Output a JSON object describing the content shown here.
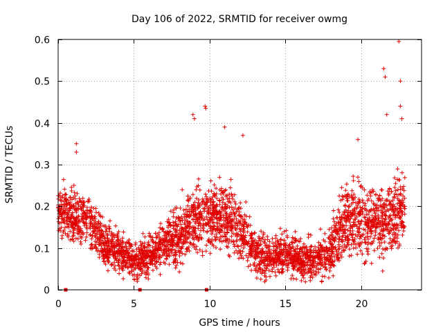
{
  "chart_data": {
    "type": "scatter",
    "title": "Day 106 of 2022, SRMTID for receiver owmg",
    "xlabel": "GPS time / hours",
    "ylabel": "SRMTID / TECUs",
    "xlim": [
      0,
      24
    ],
    "ylim": [
      0,
      0.6
    ],
    "grid": true,
    "marker": "+",
    "color": "#e00000",
    "xticks": [
      0,
      5,
      10,
      15,
      20
    ],
    "xtick_labels": [
      "0",
      "5",
      "10",
      "15",
      "20"
    ],
    "yticks": [
      0,
      0.1,
      0.2,
      0.3,
      0.4,
      0.5,
      0.6
    ],
    "ytick_labels": [
      "0",
      "0.1",
      "0.2",
      "0.3",
      "0.4",
      "0.5",
      "0.6"
    ],
    "gap_markers_x": [
      0.5,
      5.4,
      9.8
    ],
    "envelope": {
      "description": "Dense scatter of SRMTID values; typical level and spread by hour",
      "hours": [
        0,
        1,
        2,
        3,
        4,
        5,
        6,
        7,
        8,
        9,
        10,
        11,
        12,
        13,
        14,
        15,
        16,
        17,
        18,
        19,
        20,
        21,
        22,
        23
      ],
      "center": [
        0.2,
        0.17,
        0.17,
        0.11,
        0.09,
        0.07,
        0.08,
        0.11,
        0.13,
        0.17,
        0.18,
        0.17,
        0.15,
        0.09,
        0.08,
        0.09,
        0.07,
        0.07,
        0.09,
        0.17,
        0.17,
        0.16,
        0.18,
        0.2
      ],
      "spread": [
        0.05,
        0.06,
        0.05,
        0.05,
        0.04,
        0.04,
        0.04,
        0.05,
        0.06,
        0.07,
        0.07,
        0.07,
        0.06,
        0.05,
        0.04,
        0.04,
        0.04,
        0.04,
        0.05,
        0.07,
        0.08,
        0.07,
        0.08,
        0.08
      ]
    },
    "notable_points": [
      {
        "x": 1.2,
        "y": 0.35
      },
      {
        "x": 1.2,
        "y": 0.33
      },
      {
        "x": 8.9,
        "y": 0.42
      },
      {
        "x": 9.0,
        "y": 0.41
      },
      {
        "x": 9.7,
        "y": 0.44
      },
      {
        "x": 9.75,
        "y": 0.435
      },
      {
        "x": 11.0,
        "y": 0.39
      },
      {
        "x": 12.2,
        "y": 0.37
      },
      {
        "x": 19.8,
        "y": 0.36
      },
      {
        "x": 21.5,
        "y": 0.53
      },
      {
        "x": 21.6,
        "y": 0.51
      },
      {
        "x": 21.7,
        "y": 0.42
      },
      {
        "x": 22.5,
        "y": 0.595
      },
      {
        "x": 22.6,
        "y": 0.5
      },
      {
        "x": 22.6,
        "y": 0.44
      },
      {
        "x": 22.7,
        "y": 0.41
      }
    ],
    "n_points": 3200
  }
}
